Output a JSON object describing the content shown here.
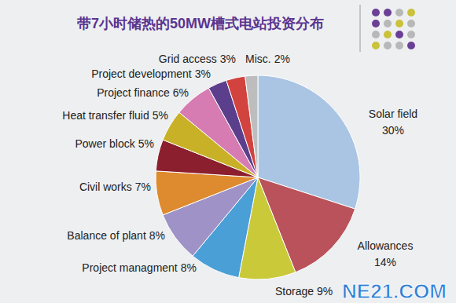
{
  "chart_data": {
    "type": "pie",
    "title": "带7小时储热的50MW槽式电站投资分布",
    "categories": [
      "Solar field",
      "Allowances",
      "Storage",
      "Project managment",
      "Balance of plant",
      "Civil works",
      "Power block",
      "Heat transfer fluid",
      "Project finance",
      "Project development",
      "Grid access",
      "Misc."
    ],
    "values": [
      30,
      14,
      9,
      8,
      8,
      7,
      5,
      5,
      6,
      3,
      3,
      2
    ],
    "value_labels": [
      "30%",
      "14%",
      "9%",
      "8%",
      "8%",
      "7%",
      "5%",
      "5%",
      "6%",
      "3%",
      "3%",
      "2%"
    ],
    "colors": [
      "#a9c5e3",
      "#b9525a",
      "#c9c93a",
      "#4a9fd6",
      "#9e92c6",
      "#de8a2e",
      "#8c1f2e",
      "#c8b126",
      "#d67cb2",
      "#5b3f8c",
      "#d2433f",
      "#bdbdbd"
    ],
    "data_labels": true,
    "annotations": [
      "NE21.COM"
    ]
  }
}
